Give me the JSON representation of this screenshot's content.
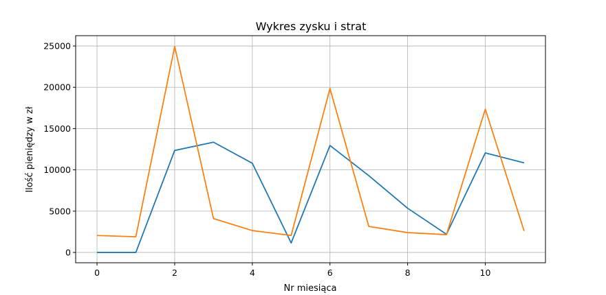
{
  "chart_data": {
    "type": "line",
    "title": "Wykres zysku i strat",
    "xlabel": "Nr miesiąca",
    "ylabel": "Ilość pieniędzy w zł",
    "x": [
      0,
      1,
      2,
      3,
      4,
      5,
      6,
      7,
      8,
      9,
      10,
      11
    ],
    "xlim": [
      -0.55,
      11.55
    ],
    "ylim": [
      -1250,
      26250
    ],
    "xticks": [
      0,
      2,
      4,
      6,
      8,
      10
    ],
    "xtick_labels": [
      "0",
      "2",
      "4",
      "6",
      "8",
      "10"
    ],
    "yticks": [
      0,
      5000,
      10000,
      15000,
      20000,
      25000
    ],
    "ytick_labels": [
      "0",
      "5000",
      "10000",
      "15000",
      "20000",
      "25000"
    ],
    "grid": true,
    "series": [
      {
        "color": "#1f77b4",
        "values": [
          0,
          0,
          12350,
          13350,
          10800,
          1150,
          12950,
          9300,
          5350,
          2200,
          12050,
          10850
        ]
      },
      {
        "color": "#ff7f0e",
        "values": [
          2050,
          1900,
          24950,
          4100,
          2650,
          2050,
          19850,
          3150,
          2400,
          2150,
          17350,
          2600
        ]
      }
    ]
  }
}
